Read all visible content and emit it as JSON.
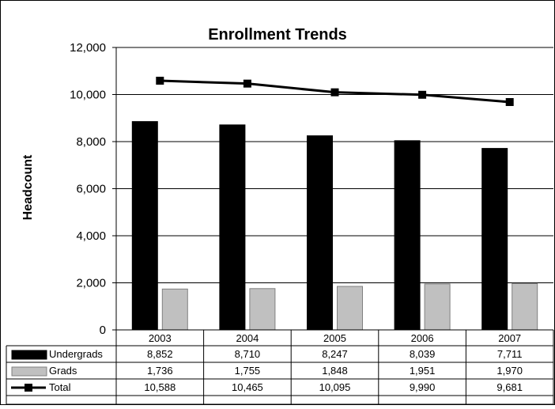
{
  "chart_data": {
    "type": "bar",
    "title": "Enrollment Trends",
    "ylabel": "Headcount",
    "xlabel": "",
    "ylim": [
      0,
      12000
    ],
    "yticks": [
      "0",
      "2,000",
      "4,000",
      "6,000",
      "8,000",
      "10,000",
      "12,000"
    ],
    "ytick_values": [
      0,
      2000,
      4000,
      6000,
      8000,
      10000,
      12000
    ],
    "categories": [
      "2003",
      "2004",
      "2005",
      "2006",
      "2007"
    ],
    "grid": true,
    "legend": "data-table",
    "series": [
      {
        "name": "Undergrads",
        "kind": "bar",
        "color": "#000000",
        "values": [
          8852,
          8710,
          8247,
          8039,
          7711
        ],
        "labels": [
          "8,852",
          "8,710",
          "8,247",
          "8,039",
          "7,711"
        ]
      },
      {
        "name": "Grads",
        "kind": "bar",
        "color": "#c0c0c0",
        "values": [
          1736,
          1755,
          1848,
          1951,
          1970
        ],
        "labels": [
          "1,736",
          "1,755",
          "1,848",
          "1,951",
          "1,970"
        ]
      },
      {
        "name": "Total",
        "kind": "line",
        "color": "#000000",
        "values": [
          10588,
          10465,
          10095,
          9990,
          9681
        ],
        "labels": [
          "10,588",
          "10,465",
          "10,095",
          "9,990",
          "9,681"
        ]
      }
    ]
  }
}
